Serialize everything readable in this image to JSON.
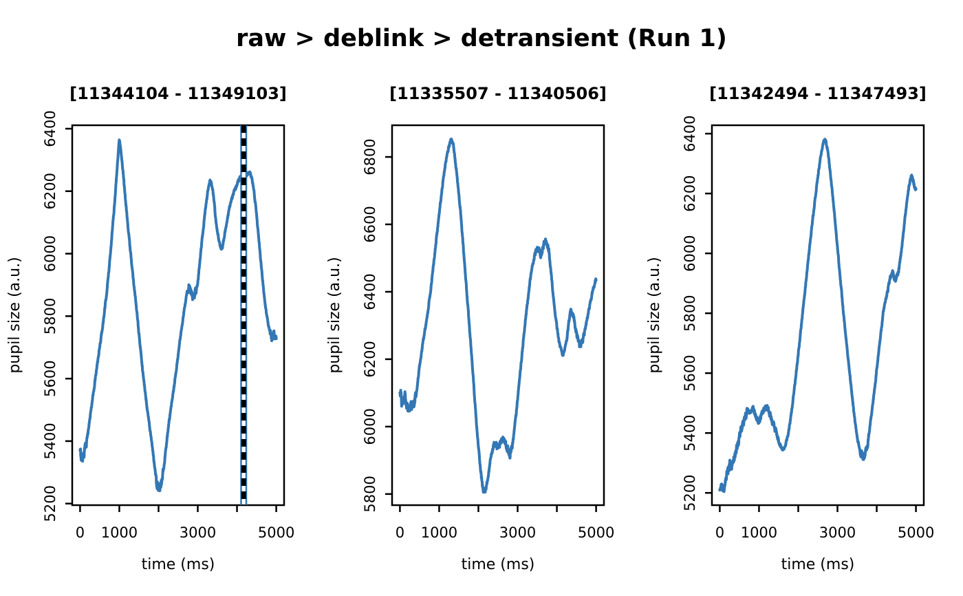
{
  "page_title": "raw > deblink > detransient (Run 1)",
  "colors": {
    "line": "#3377b4",
    "marker_solid": "#3377b4",
    "marker_gap": "#ffffff",
    "marker_dash": "#000000",
    "axis": "#000000",
    "background": "#ffffff"
  },
  "chart_data": [
    {
      "type": "line",
      "title": "[11344104 - 11349103]",
      "xlabel": "time (ms)",
      "ylabel": "pupil size (a.u.)",
      "xlim": [
        -200,
        5200
      ],
      "ylim": [
        5195,
        6411
      ],
      "x_ticks": [
        0,
        1000,
        2000,
        3000,
        4000,
        5000
      ],
      "x_tick_labels": [
        "0",
        "1000",
        "",
        "3000",
        "",
        "5000"
      ],
      "y_ticks": [
        5200,
        5400,
        5600,
        5800,
        6000,
        6200,
        6400
      ],
      "grid": false,
      "legend": null,
      "marker_line_t": 4170,
      "noise_base": 5,
      "noise_regions": [
        [
          0,
          160,
          16
        ],
        [
          1940,
          2130,
          18
        ],
        [
          2740,
          2960,
          12
        ],
        [
          4840,
          5000,
          11
        ]
      ],
      "points": [
        [
          0,
          5365
        ],
        [
          50,
          5342
        ],
        [
          120,
          5370
        ],
        [
          200,
          5425
        ],
        [
          300,
          5520
        ],
        [
          400,
          5610
        ],
        [
          500,
          5700
        ],
        [
          600,
          5790
        ],
        [
          700,
          5900
        ],
        [
          800,
          6040
        ],
        [
          900,
          6195
        ],
        [
          960,
          6300
        ],
        [
          1000,
          6372
        ],
        [
          1040,
          6330
        ],
        [
          1100,
          6255
        ],
        [
          1200,
          6115
        ],
        [
          1300,
          5985
        ],
        [
          1400,
          5870
        ],
        [
          1500,
          5745
        ],
        [
          1600,
          5620
        ],
        [
          1700,
          5515
        ],
        [
          1800,
          5420
        ],
        [
          1900,
          5320
        ],
        [
          1970,
          5258
        ],
        [
          2020,
          5243
        ],
        [
          2080,
          5258
        ],
        [
          2150,
          5330
        ],
        [
          2250,
          5445
        ],
        [
          2350,
          5535
        ],
        [
          2450,
          5625
        ],
        [
          2550,
          5725
        ],
        [
          2650,
          5815
        ],
        [
          2730,
          5878
        ],
        [
          2800,
          5898
        ],
        [
          2860,
          5858
        ],
        [
          2930,
          5872
        ],
        [
          3000,
          5905
        ],
        [
          3080,
          6010
        ],
        [
          3160,
          6105
        ],
        [
          3250,
          6195
        ],
        [
          3320,
          6238
        ],
        [
          3390,
          6200
        ],
        [
          3470,
          6095
        ],
        [
          3550,
          6030
        ],
        [
          3620,
          6012
        ],
        [
          3700,
          6075
        ],
        [
          3800,
          6142
        ],
        [
          3900,
          6190
        ],
        [
          4000,
          6222
        ],
        [
          4080,
          6246
        ],
        [
          4170,
          6242
        ],
        [
          4260,
          6252
        ],
        [
          4330,
          6262
        ],
        [
          4400,
          6230
        ],
        [
          4480,
          6150
        ],
        [
          4560,
          6040
        ],
        [
          4640,
          5930
        ],
        [
          4720,
          5835
        ],
        [
          4800,
          5768
        ],
        [
          4880,
          5732
        ],
        [
          4940,
          5745
        ],
        [
          5000,
          5722
        ]
      ]
    },
    {
      "type": "line",
      "title": "[11335507 - 11340506]",
      "xlabel": "time (ms)",
      "ylabel": "pupil size (a.u.)",
      "xlim": [
        -200,
        5200
      ],
      "ylim": [
        5767,
        6894
      ],
      "x_ticks": [
        0,
        1000,
        2000,
        3000,
        4000,
        5000
      ],
      "x_tick_labels": [
        "0",
        "1000",
        "",
        "3000",
        "",
        "5000"
      ],
      "y_ticks": [
        5800,
        6000,
        6200,
        6400,
        6600,
        6800
      ],
      "grid": false,
      "legend": null,
      "marker_line_t": null,
      "noise_base": 5,
      "noise_regions": [
        [
          0,
          400,
          16
        ],
        [
          2060,
          2220,
          9
        ],
        [
          2350,
          2900,
          10
        ],
        [
          3430,
          3800,
          9
        ],
        [
          4340,
          4700,
          9
        ]
      ],
      "points": [
        [
          0,
          6115
        ],
        [
          60,
          6060
        ],
        [
          130,
          6095
        ],
        [
          200,
          6045
        ],
        [
          270,
          6070
        ],
        [
          340,
          6052
        ],
        [
          420,
          6100
        ],
        [
          500,
          6180
        ],
        [
          600,
          6260
        ],
        [
          700,
          6330
        ],
        [
          800,
          6420
        ],
        [
          900,
          6525
        ],
        [
          1000,
          6630
        ],
        [
          1100,
          6730
        ],
        [
          1200,
          6808
        ],
        [
          1300,
          6852
        ],
        [
          1360,
          6838
        ],
        [
          1450,
          6750
        ],
        [
          1550,
          6630
        ],
        [
          1650,
          6480
        ],
        [
          1750,
          6330
        ],
        [
          1850,
          6175
        ],
        [
          1950,
          6010
        ],
        [
          2050,
          5875
        ],
        [
          2120,
          5812
        ],
        [
          2180,
          5808
        ],
        [
          2250,
          5852
        ],
        [
          2320,
          5912
        ],
        [
          2400,
          5948
        ],
        [
          2480,
          5940
        ],
        [
          2560,
          5952
        ],
        [
          2640,
          5970
        ],
        [
          2720,
          5942
        ],
        [
          2800,
          5912
        ],
        [
          2880,
          5955
        ],
        [
          2960,
          6035
        ],
        [
          3050,
          6140
        ],
        [
          3150,
          6260
        ],
        [
          3250,
          6370
        ],
        [
          3350,
          6460
        ],
        [
          3450,
          6515
        ],
        [
          3530,
          6528
        ],
        [
          3600,
          6505
        ],
        [
          3660,
          6542
        ],
        [
          3720,
          6558
        ],
        [
          3790,
          6528
        ],
        [
          3860,
          6448
        ],
        [
          3950,
          6340
        ],
        [
          4050,
          6255
        ],
        [
          4150,
          6210
        ],
        [
          4250,
          6255
        ],
        [
          4340,
          6342
        ],
        [
          4420,
          6325
        ],
        [
          4500,
          6275
        ],
        [
          4580,
          6242
        ],
        [
          4660,
          6252
        ],
        [
          4740,
          6300
        ],
        [
          4830,
          6355
        ],
        [
          4920,
          6405
        ],
        [
          5000,
          6438
        ]
      ]
    },
    {
      "type": "line",
      "title": "[11342494 - 11347493]",
      "xlabel": "time (ms)",
      "ylabel": "pupil size (a.u.)",
      "xlim": [
        -200,
        5200
      ],
      "ylim": [
        5159,
        6428
      ],
      "x_ticks": [
        0,
        1000,
        2000,
        3000,
        4000,
        5000
      ],
      "x_tick_labels": [
        "0",
        "1000",
        "",
        "3000",
        "",
        "5000"
      ],
      "y_ticks": [
        5200,
        5400,
        5600,
        5800,
        6000,
        6200,
        6400
      ],
      "grid": false,
      "legend": null,
      "marker_line_t": null,
      "noise_base": 5,
      "noise_regions": [
        [
          0,
          700,
          14
        ],
        [
          850,
          1500,
          11
        ],
        [
          3580,
          3800,
          11
        ],
        [
          4280,
          4580,
          9
        ],
        [
          4860,
          5000,
          9
        ]
      ],
      "points": [
        [
          0,
          5208
        ],
        [
          50,
          5230
        ],
        [
          110,
          5212
        ],
        [
          180,
          5262
        ],
        [
          250,
          5298
        ],
        [
          320,
          5285
        ],
        [
          390,
          5328
        ],
        [
          470,
          5368
        ],
        [
          550,
          5415
        ],
        [
          630,
          5448
        ],
        [
          710,
          5478
        ],
        [
          780,
          5465
        ],
        [
          850,
          5488
        ],
        [
          920,
          5455
        ],
        [
          990,
          5432
        ],
        [
          1070,
          5465
        ],
        [
          1150,
          5485
        ],
        [
          1230,
          5478
        ],
        [
          1310,
          5452
        ],
        [
          1400,
          5418
        ],
        [
          1500,
          5372
        ],
        [
          1590,
          5342
        ],
        [
          1660,
          5352
        ],
        [
          1750,
          5400
        ],
        [
          1850,
          5490
        ],
        [
          1950,
          5605
        ],
        [
          2050,
          5725
        ],
        [
          2150,
          5848
        ],
        [
          2250,
          5972
        ],
        [
          2350,
          6092
        ],
        [
          2450,
          6205
        ],
        [
          2550,
          6305
        ],
        [
          2630,
          6368
        ],
        [
          2690,
          6382
        ],
        [
          2750,
          6345
        ],
        [
          2830,
          6255
        ],
        [
          2920,
          6135
        ],
        [
          3010,
          6005
        ],
        [
          3100,
          5875
        ],
        [
          3200,
          5740
        ],
        [
          3300,
          5615
        ],
        [
          3400,
          5490
        ],
        [
          3500,
          5385
        ],
        [
          3590,
          5330
        ],
        [
          3680,
          5318
        ],
        [
          3770,
          5362
        ],
        [
          3870,
          5465
        ],
        [
          3970,
          5575
        ],
        [
          4070,
          5695
        ],
        [
          4170,
          5805
        ],
        [
          4250,
          5858
        ],
        [
          4330,
          5912
        ],
        [
          4400,
          5938
        ],
        [
          4470,
          5908
        ],
        [
          4540,
          5932
        ],
        [
          4610,
          5988
        ],
        [
          4700,
          6092
        ],
        [
          4790,
          6198
        ],
        [
          4880,
          6262
        ],
        [
          4940,
          6235
        ],
        [
          5000,
          6215
        ]
      ]
    }
  ]
}
